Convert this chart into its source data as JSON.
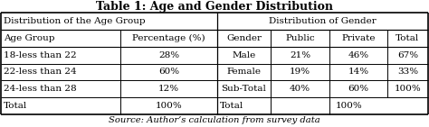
{
  "title": "Table 1: Age and Gender Distribution",
  "caption": "Source: Author’s calculation from survey data",
  "col1_header": "Distribution of the Age Group",
  "col2_header": "Distribution of Gender",
  "age_headers": [
    "Age Group",
    "Percentage (%)"
  ],
  "age_rows": [
    [
      "18-less than 22",
      "28%"
    ],
    [
      "22-less than 24",
      "60%"
    ],
    [
      "24-less than 28",
      "12%"
    ],
    [
      "Total",
      "100%"
    ]
  ],
  "gender_headers": [
    "Gender",
    "Public",
    "Private",
    "Total"
  ],
  "gender_rows": [
    [
      "Male",
      "21%",
      "46%",
      "67%"
    ],
    [
      "Female",
      "19%",
      "14%",
      "33%"
    ],
    [
      "Sub-Total",
      "40%",
      "60%",
      "100%"
    ],
    [
      "Total",
      "",
      "100%",
      ""
    ]
  ],
  "line_color": "#000000",
  "text_color": "#000000",
  "font_size": 7.5,
  "title_font_size": 9.0,
  "caption_font_size": 7.2,
  "fig_width": 4.74,
  "fig_height": 1.41,
  "dpi": 100
}
